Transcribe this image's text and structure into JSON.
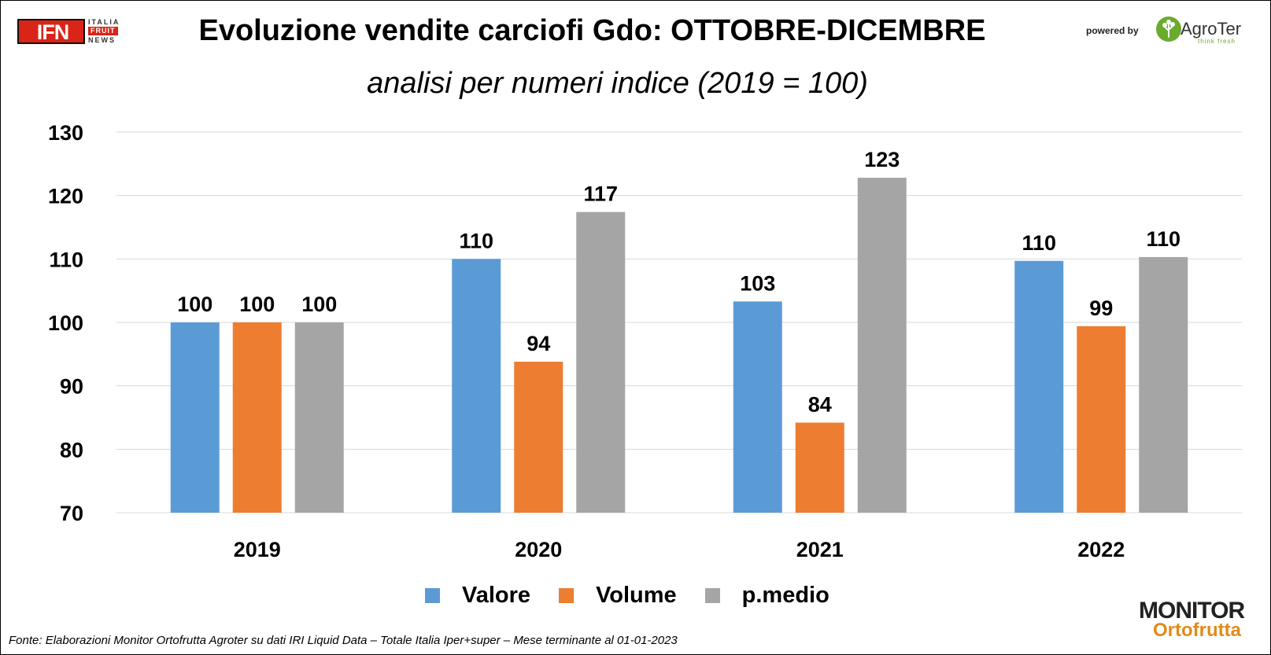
{
  "header": {
    "title": "Evoluzione vendite carciofi Gdo: OTTOBRE-DICEMBRE",
    "subtitle": "analisi per numeri indice (2019 = 100)",
    "ifn_logo": {
      "main": "IFN",
      "line1": "ITALIA",
      "line2": "FRUIT",
      "line3": "NEWS",
      "color": "#d92418"
    },
    "powered_by": "powered by",
    "agroter": {
      "name": "AgroTer",
      "tagline": "think fresh",
      "icon": "tree-icon",
      "color": "#6aab2e"
    }
  },
  "footer": {
    "source": "Fonte: Elaborazioni Monitor Ortofrutta Agroter su dati IRI Liquid Data – Totale Italia Iper+super – Mese terminante al 01-01-2023",
    "monitor_logo": {
      "top": "MONITOR",
      "bottom": "Ortofrutta",
      "icon": "magnifier-icon"
    }
  },
  "chart_data": {
    "type": "bar",
    "title": "Evoluzione vendite carciofi Gdo: OTTOBRE-DICEMBRE",
    "subtitle": "analisi per numeri indice (2019 = 100)",
    "categories": [
      "2019",
      "2020",
      "2021",
      "2022"
    ],
    "series": [
      {
        "name": "Valore",
        "color": "#5b9bd5",
        "values": [
          100,
          110,
          103.3,
          109.7
        ],
        "labels": [
          "100",
          "110",
          "103",
          "110"
        ]
      },
      {
        "name": "Volume",
        "color": "#ed7d31",
        "values": [
          100,
          93.8,
          84.2,
          99.4
        ],
        "labels": [
          "100",
          "94",
          "84",
          "99"
        ]
      },
      {
        "name": "p.medio",
        "color": "#a5a5a5",
        "values": [
          100,
          117.4,
          122.8,
          110.3
        ],
        "labels": [
          "100",
          "117",
          "123",
          "110"
        ]
      }
    ],
    "ylim": [
      70,
      130
    ],
    "yticks": [
      70,
      80,
      90,
      100,
      110,
      120,
      130
    ],
    "xlabel": "",
    "ylabel": "",
    "grid": true,
    "legend": "bottom"
  }
}
